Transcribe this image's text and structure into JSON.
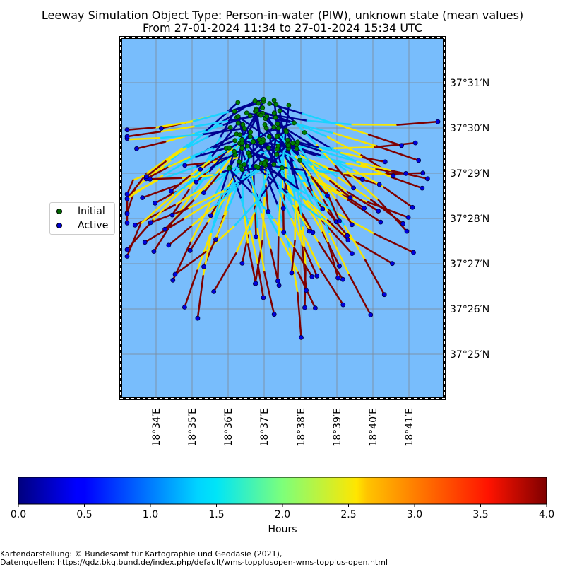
{
  "title": {
    "line1": "Leeway Simulation Object Type: Person-in-water (PIW), unknown state (mean values)",
    "line2": "From 27-01-2024 11:34 to 27-01-2024 15:34 UTC"
  },
  "map": {
    "background_color": "#78bdfc",
    "lon_labels": [
      "18°34′E",
      "18°35′E",
      "18°36′E",
      "18°37′E",
      "18°38′E",
      "18°39′E",
      "18°40′E",
      "18°41′E"
    ],
    "lat_labels": [
      "37°31′N",
      "37°30′N",
      "37°29′N",
      "37°28′N",
      "37°27′N",
      "37°26′N",
      "37°25′N"
    ]
  },
  "legend": {
    "items": [
      {
        "label": "Initial",
        "color": "#006400"
      },
      {
        "label": "Active",
        "color": "#0000cc"
      }
    ]
  },
  "colorbar": {
    "label": "Hours",
    "ticks": [
      "0.0",
      "0.5",
      "1.0",
      "1.5",
      "2.0",
      "2.5",
      "3.0",
      "3.5",
      "4.0"
    ],
    "colormap": "jet",
    "range": [
      0,
      4
    ]
  },
  "credits": {
    "line1": "Kartendarstellung: © Bundesamt für Kartographie und Geodäsie (2021),",
    "line2": "Datenquellen: https://gdz.bkg.bund.de/index.php/default/wms-topplusopen-wms-topplus-open.html"
  }
}
